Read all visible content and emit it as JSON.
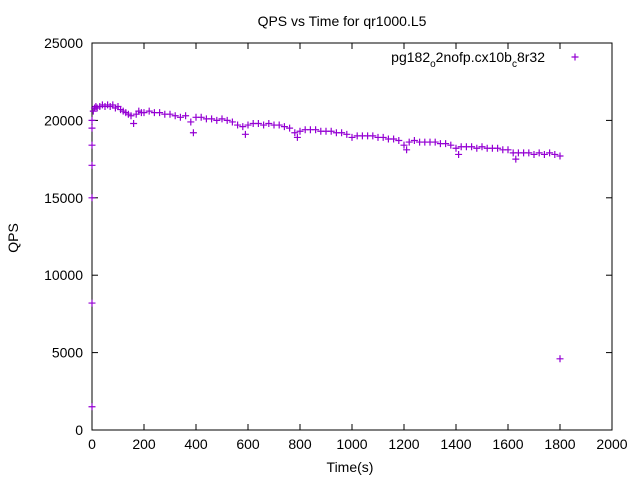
{
  "chart_data": {
    "type": "scatter",
    "title": "QPS vs Time for qr1000.L5",
    "xlabel": "Time(s)",
    "ylabel": "QPS",
    "xlim": [
      0,
      2000
    ],
    "ylim": [
      0,
      25000
    ],
    "xticks": [
      0,
      200,
      400,
      600,
      800,
      1000,
      1200,
      1400,
      1600,
      1800,
      2000
    ],
    "yticks": [
      0,
      5000,
      10000,
      15000,
      20000,
      25000
    ],
    "grid": false,
    "legend_position": "top-right",
    "marker_color": "#9400d3",
    "marker": "plus",
    "series": [
      {
        "name_parts": [
          "pg182",
          "o",
          "2nofp.cx10b",
          "c",
          "8r32"
        ],
        "x": [
          0,
          0,
          0,
          0,
          0,
          0,
          0,
          5,
          10,
          15,
          20,
          30,
          40,
          50,
          60,
          70,
          80,
          90,
          100,
          110,
          120,
          130,
          140,
          150,
          160,
          170,
          180,
          190,
          200,
          220,
          240,
          260,
          280,
          300,
          320,
          340,
          360,
          380,
          390,
          400,
          420,
          440,
          460,
          480,
          500,
          520,
          540,
          560,
          580,
          590,
          600,
          620,
          640,
          660,
          680,
          700,
          720,
          740,
          760,
          780,
          790,
          800,
          820,
          840,
          860,
          880,
          900,
          920,
          940,
          960,
          980,
          1000,
          1020,
          1040,
          1060,
          1080,
          1100,
          1120,
          1140,
          1160,
          1180,
          1200,
          1210,
          1220,
          1240,
          1260,
          1280,
          1300,
          1320,
          1340,
          1360,
          1380,
          1400,
          1410,
          1420,
          1440,
          1460,
          1480,
          1500,
          1520,
          1540,
          1560,
          1580,
          1600,
          1620,
          1630,
          1640,
          1660,
          1680,
          1700,
          1720,
          1740,
          1760,
          1780,
          1800,
          1800
        ],
        "y": [
          1500,
          8200,
          15000,
          17100,
          18400,
          19500,
          20000,
          20600,
          20800,
          20900,
          20800,
          20900,
          21000,
          20900,
          21000,
          20900,
          21000,
          20800,
          20900,
          20700,
          20600,
          20500,
          20400,
          20300,
          19800,
          20400,
          20600,
          20500,
          20500,
          20600,
          20500,
          20500,
          20400,
          20400,
          20300,
          20200,
          20300,
          19900,
          19200,
          20200,
          20200,
          20100,
          20100,
          20000,
          20100,
          20000,
          19900,
          19700,
          19600,
          19100,
          19700,
          19800,
          19800,
          19700,
          19800,
          19700,
          19700,
          19600,
          19500,
          19200,
          18900,
          19300,
          19400,
          19400,
          19400,
          19300,
          19300,
          19300,
          19200,
          19200,
          19100,
          18900,
          19000,
          19000,
          19000,
          19000,
          18900,
          18900,
          18800,
          18800,
          18700,
          18400,
          18100,
          18600,
          18700,
          18600,
          18600,
          18600,
          18600,
          18500,
          18500,
          18400,
          18200,
          17800,
          18300,
          18300,
          18300,
          18200,
          18300,
          18200,
          18200,
          18200,
          18100,
          18100,
          17900,
          17500,
          17900,
          17900,
          17900,
          17800,
          17900,
          17800,
          17900,
          17800,
          17700,
          4600
        ]
      }
    ]
  }
}
